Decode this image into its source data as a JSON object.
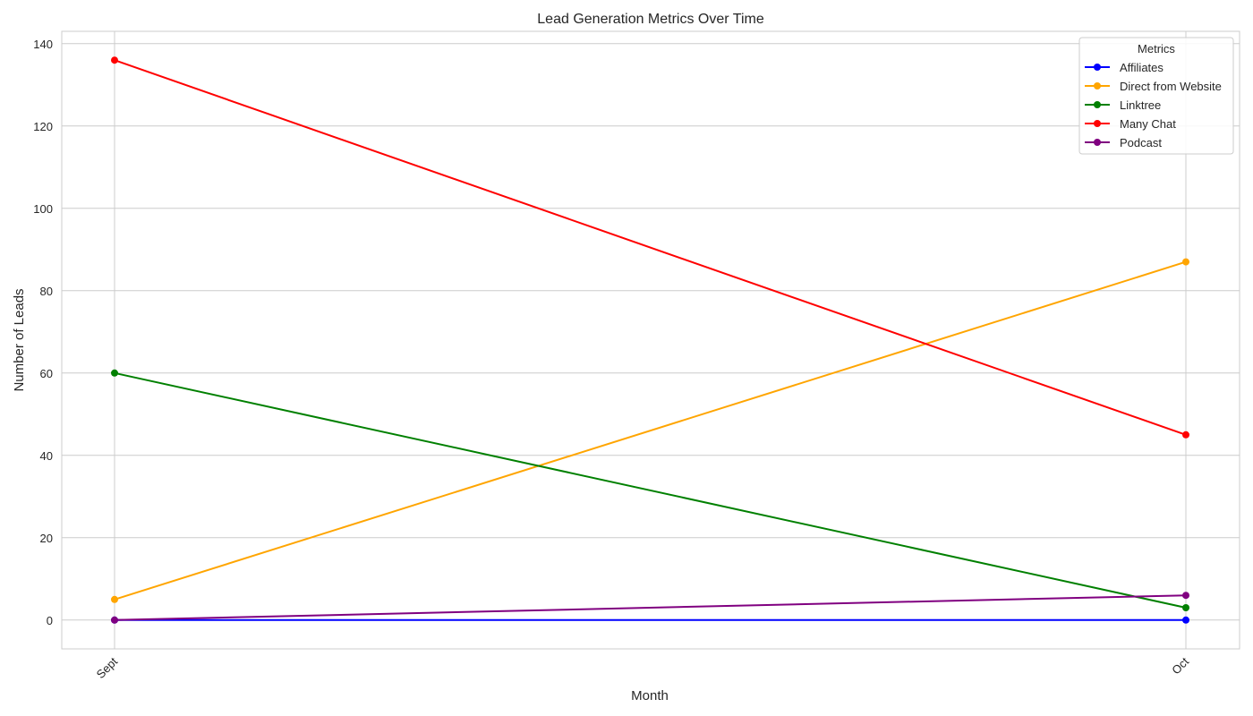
{
  "chart_data": {
    "type": "line",
    "title": "Lead Generation Metrics Over Time",
    "xlabel": "Month",
    "ylabel": "Number of Leads",
    "categories": [
      "Sept",
      "Oct"
    ],
    "ylim": [
      -7,
      143
    ],
    "yticks": [
      0,
      20,
      40,
      60,
      80,
      100,
      120,
      140
    ],
    "grid": true,
    "legend": {
      "title": "Metrics",
      "position": "top-right"
    },
    "series": [
      {
        "name": "Affiliates",
        "color": "#0000ff",
        "values": [
          0,
          0
        ]
      },
      {
        "name": "Direct from Website",
        "color": "#ffa500",
        "values": [
          5,
          87
        ]
      },
      {
        "name": "Linktree",
        "color": "#008000",
        "values": [
          60,
          3
        ]
      },
      {
        "name": "Many Chat",
        "color": "#ff0000",
        "values": [
          136,
          45
        ]
      },
      {
        "name": "Podcast",
        "color": "#800080",
        "values": [
          0,
          6
        ]
      }
    ]
  }
}
